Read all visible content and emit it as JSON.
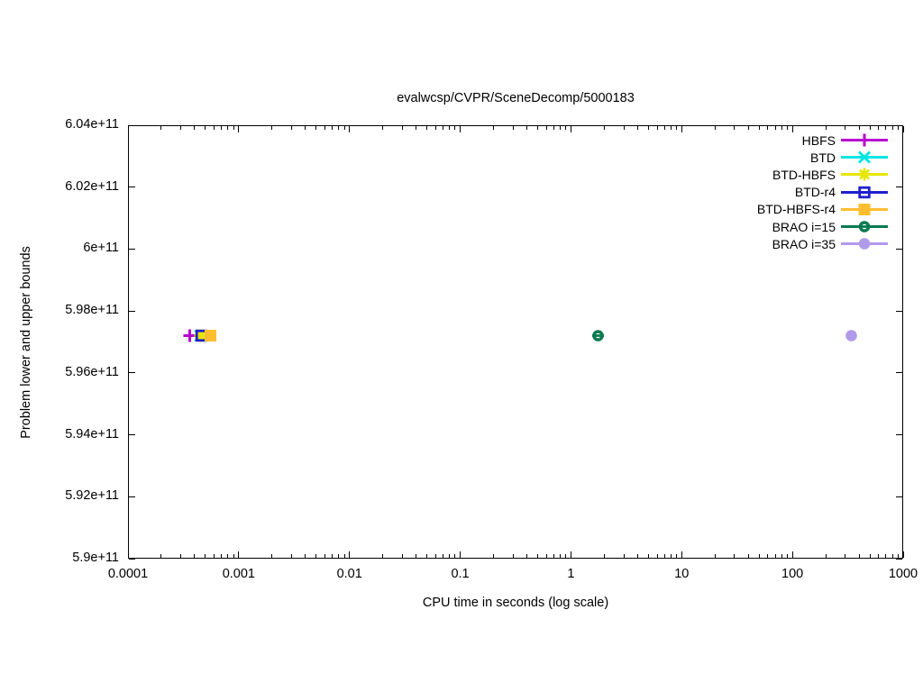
{
  "chart_data": {
    "type": "scatter",
    "title": "evalwcsp/CVPR/SceneDecomp/5000183",
    "xlabel": "CPU time in seconds (log scale)",
    "ylabel": "Problem lower and upper bounds",
    "x_scale": "log",
    "y_scale": "linear",
    "xlim": [
      0.0001,
      1000
    ],
    "ylim": [
      590000000000.0,
      604000000000.0
    ],
    "grid": false,
    "legend_position": "top-right-inside",
    "background_color": "#ffffff",
    "axis_color": "#000000",
    "x_ticks": [
      {
        "value": 0.0001,
        "label": "0.0001"
      },
      {
        "value": 0.001,
        "label": "0.001"
      },
      {
        "value": 0.01,
        "label": "0.01"
      },
      {
        "value": 0.1,
        "label": "0.1"
      },
      {
        "value": 1,
        "label": "1"
      },
      {
        "value": 10,
        "label": "10"
      },
      {
        "value": 100,
        "label": "100"
      },
      {
        "value": 1000,
        "label": "1000"
      }
    ],
    "y_ticks": [
      {
        "value": 590000000000.0,
        "label": "5.9e+11"
      },
      {
        "value": 592000000000.0,
        "label": "5.92e+11"
      },
      {
        "value": 594000000000.0,
        "label": "5.94e+11"
      },
      {
        "value": 596000000000.0,
        "label": "5.96e+11"
      },
      {
        "value": 598000000000.0,
        "label": "5.98e+11"
      },
      {
        "value": 600000000000.0,
        "label": "6e+11"
      },
      {
        "value": 602000000000.0,
        "label": "6.02e+11"
      },
      {
        "value": 604000000000.0,
        "label": "6.04e+11"
      }
    ],
    "series": [
      {
        "name": "HBFS",
        "color": "#b800d0",
        "marker": "plus",
        "points": [
          [
            0.00036,
            597200000000.0
          ]
        ]
      },
      {
        "name": "BTD",
        "color": "#00e5e5",
        "marker": "cross",
        "points": [
          [
            0.00045,
            597200000000.0
          ]
        ]
      },
      {
        "name": "BTD-HBFS",
        "color": "#e6e600",
        "marker": "asterisk",
        "points": [
          [
            0.00045,
            597200000000.0
          ]
        ]
      },
      {
        "name": "BTD-r4",
        "color": "#2020cc",
        "marker": "square-open",
        "points": [
          [
            0.00046,
            597200000000.0
          ]
        ]
      },
      {
        "name": "BTD-HBFS-r4",
        "color": "#ffbe30",
        "marker": "square-filled",
        "points": [
          [
            0.00056,
            597200000000.0
          ]
        ]
      },
      {
        "name": "BRAO i=15",
        "color": "#087a50",
        "marker": "circle-slot",
        "points": [
          [
            1.75,
            597200000000.0
          ]
        ]
      },
      {
        "name": "BRAO i=35",
        "color": "#b29aea",
        "marker": "circle-filled",
        "points": [
          [
            340,
            597200000000.0
          ]
        ]
      }
    ]
  }
}
